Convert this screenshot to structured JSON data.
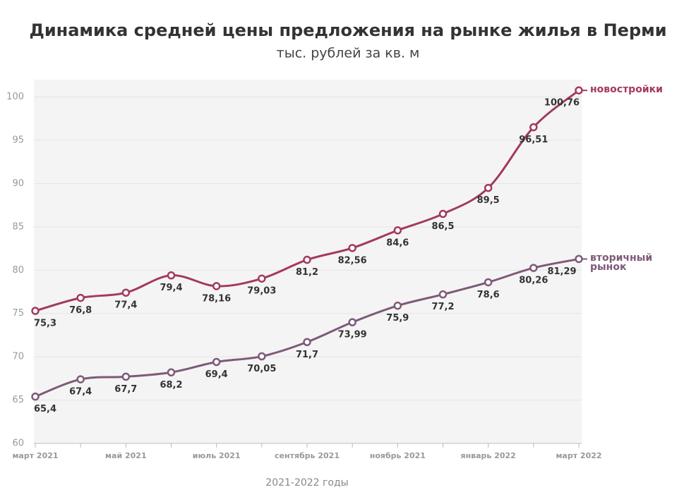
{
  "chart_data": {
    "type": "line",
    "title": "Динамика средней цены предложения на рынке жилья в Перми",
    "subtitle": "тыс. рублей за кв. м",
    "x_label": "2021-2022 годы",
    "categories": [
      "март 2021",
      null,
      "май 2021",
      null,
      "июль 2021",
      null,
      "сентябрь 2021",
      null,
      "ноябрь 2021",
      null,
      "январь 2022",
      null,
      "март 2022"
    ],
    "series": [
      {
        "name": "новостройки",
        "color": "#a33a5a",
        "values": [
          75.3,
          76.8,
          77.4,
          79.4,
          78.16,
          79.03,
          81.2,
          82.56,
          84.6,
          86.5,
          89.5,
          96.51,
          100.76
        ],
        "value_labels": [
          "75,3",
          "76,8",
          "77,4",
          "79,4",
          "78,16",
          "79,03",
          "81,2",
          "82,56",
          "84,6",
          "86,5",
          "89,5",
          "96,51",
          "100,76"
        ]
      },
      {
        "name": "вторичный рынок",
        "color": "#7d5a78",
        "values": [
          65.4,
          67.4,
          67.7,
          68.2,
          69.4,
          70.05,
          71.7,
          73.99,
          75.9,
          77.2,
          78.6,
          80.26,
          81.29
        ],
        "value_labels": [
          "65,4",
          "67,4",
          "67,7",
          "68,2",
          "69,4",
          "70,05",
          "71,7",
          "73,99",
          "75,9",
          "77,2",
          "78,6",
          "80,26",
          "81,29"
        ]
      }
    ],
    "ylim": [
      60,
      102
    ],
    "yticks": [
      60,
      65,
      70,
      75,
      80,
      85,
      90,
      95,
      100
    ],
    "grid": true
  }
}
